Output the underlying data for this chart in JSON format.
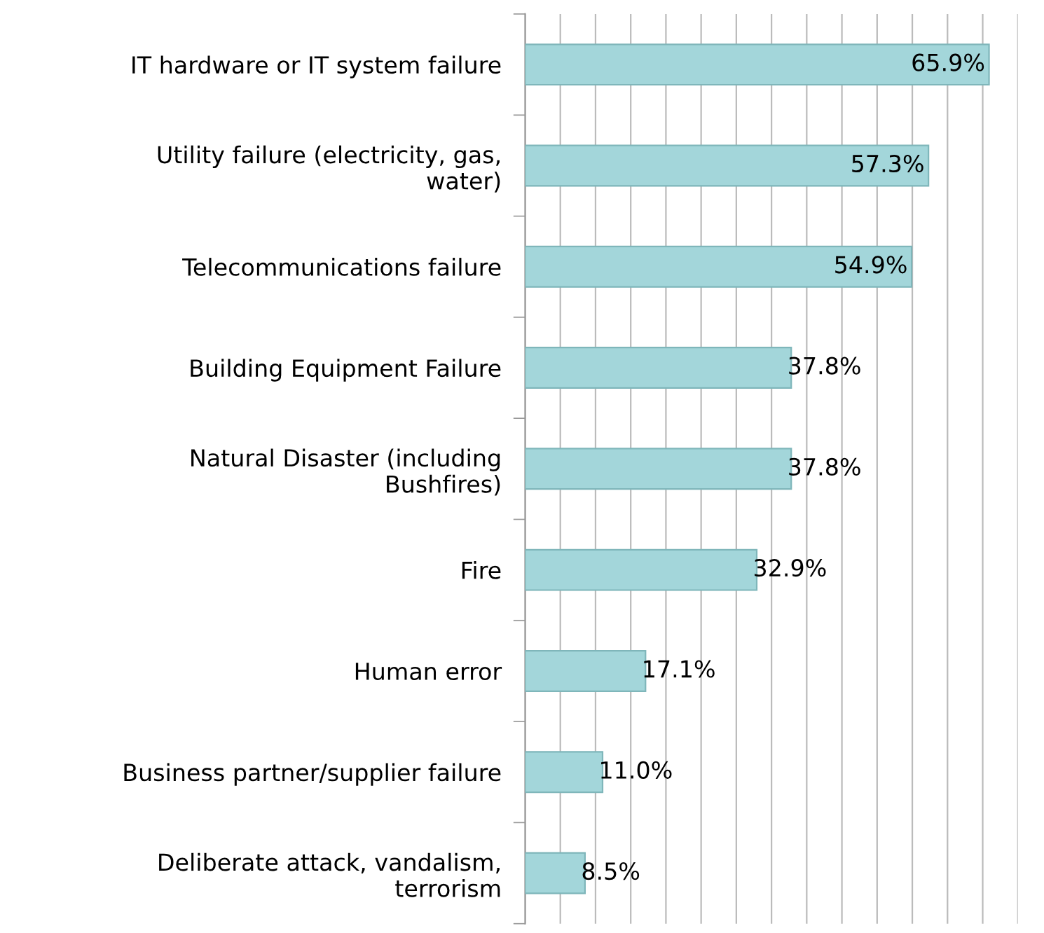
{
  "chart_data": {
    "type": "bar",
    "orientation": "horizontal",
    "categories": [
      "IT hardware or IT system failure",
      "Utility failure (electricity, gas,\nwater)",
      "Telecommunications failure",
      "Building Equipment Failure",
      "Natural Disaster (including\nBushfires)",
      "Fire",
      "Human error",
      "Business partner/supplier failure",
      "Deliberate attack, vandalism,\nterrorism"
    ],
    "values": [
      65.9,
      57.3,
      54.9,
      37.8,
      37.8,
      32.9,
      17.1,
      11.0,
      8.5
    ],
    "value_labels": [
      "65.9%",
      "57.3%",
      "54.9%",
      "37.8%",
      "37.8%",
      "32.9%",
      "17.1%",
      "11.0%",
      "8.5%"
    ],
    "color": "#a3d6da",
    "xlim": [
      0,
      70
    ],
    "xticks": [
      {
        "value": 0,
        "label": null
      },
      {
        "value": 5,
        "label": null
      },
      {
        "value": 10,
        "label": null
      },
      {
        "value": 15,
        "label": null
      },
      {
        "value": 20,
        "label": null
      },
      {
        "value": 25,
        "label": null
      },
      {
        "value": 30,
        "label": null
      },
      {
        "value": 35,
        "label": null
      },
      {
        "value": 40,
        "label": null
      },
      {
        "value": 45,
        "label": null
      },
      {
        "value": 50,
        "label": null
      },
      {
        "value": 55,
        "label": null
      },
      {
        "value": 60,
        "label": null
      },
      {
        "value": 65,
        "label": null
      },
      {
        "value": 70,
        "label": null
      }
    ],
    "grid": "x",
    "tick_labels": "y"
  }
}
